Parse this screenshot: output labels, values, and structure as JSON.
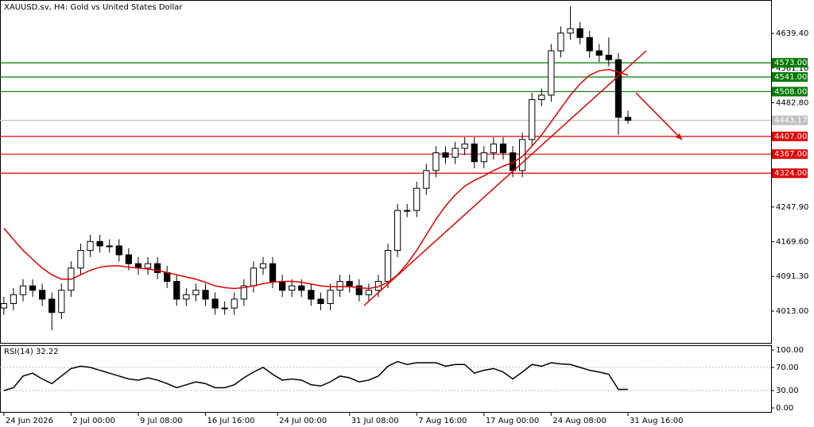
{
  "chart_data": {
    "type": "candlestick",
    "title": "XAUUSD.sv, H4:  Gold vs United States Dollar",
    "xlim": [
      -0.4,
      79.9
    ],
    "xticks": [
      {
        "value": 0,
        "label": "24 Jun 2026"
      },
      {
        "value": 7,
        "label": "2 Jul 00:00"
      },
      {
        "value": 14,
        "label": "9 Jul 08:00"
      },
      {
        "value": 21,
        "label": "16 Jul 16:00"
      },
      {
        "value": 28.5,
        "label": "24 Jul 00:00"
      },
      {
        "value": 36,
        "label": "31 Jul 08:00"
      },
      {
        "value": 43,
        "label": "7 Aug 16:00"
      },
      {
        "value": 50,
        "label": "17 Aug 00:00"
      },
      {
        "value": 57,
        "label": "24 Aug 08:00"
      },
      {
        "value": 65,
        "label": "31 Aug 16:00"
      }
    ],
    "ylim": [
      3941.4,
      4714.6
    ],
    "yticks": [
      {
        "value": 4013,
        "label": "4013.00"
      },
      {
        "value": 4091.3,
        "label": "4091.30"
      },
      {
        "value": 4169.6,
        "label": "4169.60"
      },
      {
        "value": 4247.9,
        "label": "4247.90"
      },
      {
        "value": 4482.8,
        "label": "4482.80"
      },
      {
        "value": 4561.1,
        "label": "4561.10"
      },
      {
        "value": 4639.4,
        "label": "4639.40"
      }
    ],
    "open": [
      4020,
      4030,
      4050,
      4070,
      4060,
      4040,
      4010,
      4060,
      4110,
      4150,
      4170,
      4160,
      4160,
      4140,
      4120,
      4110,
      4120,
      4100,
      4080,
      4040,
      4050,
      4060,
      4040,
      4020,
      4020,
      4040,
      4070,
      4110,
      4120,
      4080,
      4060,
      4070,
      4060,
      4040,
      4030,
      4060,
      4080,
      4070,
      4050,
      4060,
      4080,
      4150,
      4240,
      4240,
      4290,
      4330,
      4370,
      4360,
      4380,
      4390,
      4350,
      4370,
      4390,
      4370,
      4330,
      4400,
      4490,
      4500,
      4600,
      4640,
      4650,
      4630,
      4600,
      4590,
      4580,
      4450
    ],
    "high": [
      4045,
      4065,
      4085,
      4085,
      4075,
      4055,
      4075,
      4125,
      4165,
      4185,
      4185,
      4175,
      4175,
      4155,
      4135,
      4135,
      4135,
      4115,
      4095,
      4065,
      4075,
      4075,
      4055,
      4035,
      4055,
      4085,
      4125,
      4135,
      4135,
      4095,
      4085,
      4085,
      4075,
      4055,
      4075,
      4095,
      4095,
      4085,
      4075,
      4095,
      4165,
      4255,
      4255,
      4305,
      4345,
      4385,
      4385,
      4395,
      4405,
      4405,
      4385,
      4405,
      4405,
      4385,
      4415,
      4505,
      4515,
      4615,
      4655,
      4700,
      4665,
      4645,
      4615,
      4630,
      4595,
      4465
    ],
    "low": [
      4005,
      4015,
      4035,
      4045,
      4025,
      3970,
      3995,
      4045,
      4095,
      4135,
      4145,
      4145,
      4125,
      4105,
      4095,
      4095,
      4085,
      4065,
      4025,
      4025,
      4035,
      4025,
      4005,
      4005,
      4005,
      4025,
      4055,
      4095,
      4065,
      4045,
      4045,
      4045,
      4025,
      4015,
      4015,
      4045,
      4055,
      4035,
      4035,
      4045,
      4065,
      4135,
      4225,
      4225,
      4275,
      4315,
      4345,
      4345,
      4365,
      4335,
      4335,
      4355,
      4355,
      4315,
      4315,
      4385,
      4475,
      4485,
      4585,
      4625,
      4615,
      4585,
      4575,
      4565,
      4410,
      4435
    ],
    "close": [
      4030,
      4050,
      4070,
      4060,
      4040,
      4010,
      4060,
      4110,
      4150,
      4170,
      4160,
      4160,
      4140,
      4120,
      4110,
      4120,
      4100,
      4080,
      4040,
      4050,
      4060,
      4040,
      4020,
      4020,
      4040,
      4070,
      4110,
      4120,
      4080,
      4060,
      4070,
      4060,
      4040,
      4030,
      4060,
      4080,
      4070,
      4050,
      4060,
      4080,
      4150,
      4240,
      4240,
      4290,
      4330,
      4370,
      4360,
      4380,
      4390,
      4350,
      4370,
      4390,
      4370,
      4330,
      4400,
      4490,
      4500,
      4600,
      4640,
      4650,
      4630,
      4600,
      4590,
      4580,
      4450,
      4443.17
    ],
    "ma": {
      "color": "#e00000",
      "values": [
        4200,
        4175,
        4150,
        4130,
        4110,
        4095,
        4085,
        4085,
        4095,
        4105,
        4112,
        4115,
        4115,
        4112,
        4110,
        4108,
        4105,
        4100,
        4095,
        4090,
        4085,
        4078,
        4070,
        4066,
        4064,
        4066,
        4070,
        4075,
        4078,
        4080,
        4080,
        4078,
        4074,
        4070,
        4068,
        4068,
        4068,
        4066,
        4064,
        4068,
        4078,
        4095,
        4120,
        4150,
        4185,
        4220,
        4250,
        4275,
        4295,
        4308,
        4318,
        4330,
        4340,
        4348,
        4362,
        4385,
        4410,
        4440,
        4470,
        4500,
        4525,
        4545,
        4555,
        4558,
        4552,
        4545
      ]
    },
    "levels": [
      {
        "value": 4573,
        "label": "4573.00",
        "color": "#007a00"
      },
      {
        "value": 4541,
        "label": "4541.00",
        "color": "#007a00"
      },
      {
        "value": 4508,
        "label": "4508.00",
        "color": "#007a00"
      },
      {
        "value": 4407,
        "label": "4407.00",
        "color": "#e00000"
      },
      {
        "value": 4367,
        "label": "4367.00",
        "color": "#e00000"
      },
      {
        "value": 4324,
        "label": "4324.00",
        "color": "#e00000"
      }
    ],
    "current": {
      "value": 4443.17,
      "label": "4443.17",
      "color": "#c0c0c0"
    },
    "rsi": {
      "title": "RSI(14) 32.22",
      "color": "#000000",
      "ylim": [
        -8.2,
        106.8
      ],
      "yticks": [
        {
          "value": 100,
          "label": "100.00"
        },
        {
          "value": 70,
          "label": "70.00"
        },
        {
          "value": 30,
          "label": "30.00"
        },
        {
          "value": 0,
          "label": "0.00"
        }
      ],
      "values": [
        30,
        35,
        55,
        60,
        50,
        42,
        55,
        68,
        72,
        70,
        65,
        60,
        55,
        50,
        48,
        52,
        48,
        42,
        35,
        40,
        45,
        42,
        35,
        35,
        40,
        52,
        62,
        70,
        58,
        48,
        50,
        48,
        40,
        38,
        45,
        55,
        52,
        45,
        48,
        55,
        72,
        80,
        75,
        78,
        78,
        78,
        72,
        75,
        75,
        60,
        65,
        68,
        62,
        50,
        62,
        75,
        72,
        78,
        76,
        75,
        70,
        65,
        62,
        58,
        32,
        32.22
      ]
    }
  }
}
